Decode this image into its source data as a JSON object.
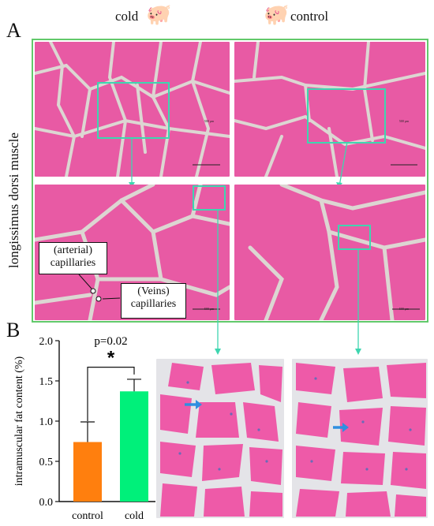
{
  "panel_a": {
    "letter": "A",
    "col_cold": "cold",
    "col_control": "control",
    "row_label": "longissimus dorsi muscle",
    "callout_arterial": "(arterial) capillaries",
    "callout_veins": "(Veins) capillaries",
    "scale": "500 μm",
    "pig_icon": "pig-icon",
    "frame_color": "#62c96b",
    "tissue_color": "#e85aa4",
    "box_color": "#3ed6b0"
  },
  "panel_b": {
    "letter": "B"
  },
  "chart_data": {
    "type": "bar",
    "categories": [
      "control",
      "cold"
    ],
    "values": [
      0.74,
      1.37
    ],
    "errors": [
      0.25,
      0.15
    ],
    "colors": [
      "#ff7f0e",
      "#00f07a"
    ],
    "ylabel": "intramuscular fat content (%)",
    "ylim": [
      0.0,
      2.0
    ],
    "yticks": [
      "0.0",
      "0.5",
      "1.0",
      "1.5",
      "2.0"
    ],
    "annotation_p": "p=0.02",
    "annotation_sig": "*"
  }
}
